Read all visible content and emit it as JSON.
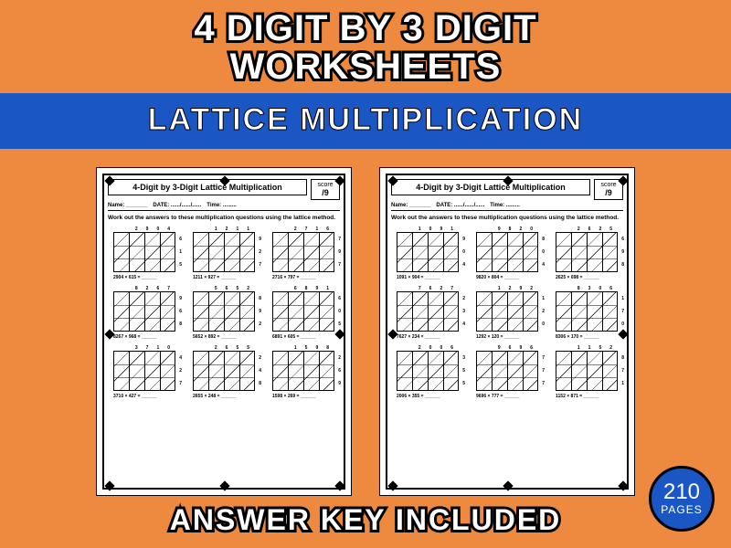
{
  "colors": {
    "background": "#ed8a3f",
    "banner": "#1a56c4",
    "badge": "#1a56c4",
    "text_outline": "#000000",
    "text_fill": "#ffffff"
  },
  "title": {
    "line1": "4 DIGIT BY 3 DIGIT",
    "line2": "WORKSHEETS",
    "fontsize": 40
  },
  "banner": {
    "text": "LATTICE MULTIPLICATION",
    "fontsize": 34
  },
  "footer": {
    "text": "ANSWER KEY INCLUDED",
    "fontsize": 32
  },
  "badge": {
    "number": "210",
    "label": "PAGES"
  },
  "worksheet": {
    "title": "4-Digit by 3-Digit Lattice Multiplication",
    "score_label": "score",
    "score_denom": "/9",
    "name_label": "Name:",
    "date_label": "DATE: ....../....../......",
    "time_label": "Time: .........",
    "instruction": "Work out the answers to these multiplication questions using the lattice method."
  },
  "sheet1": {
    "rows": [
      [
        {
          "top": [
            "2",
            "9",
            "0",
            "4"
          ],
          "side": [
            "6",
            "1",
            "5"
          ],
          "eq": "2904 × 615 = ______"
        },
        {
          "top": [
            "1",
            "2",
            "1",
            "1"
          ],
          "side": [
            "9",
            "2",
            "7"
          ],
          "eq": "1211 × 927 = ______"
        },
        {
          "top": [
            "2",
            "7",
            "1",
            "6"
          ],
          "side": [
            "7",
            "9",
            "7"
          ],
          "eq": "2716 × 797 = ______"
        }
      ],
      [
        {
          "top": [
            "8",
            "2",
            "6",
            "7"
          ],
          "side": [
            "9",
            "6",
            "8"
          ],
          "eq": "8267 × 968 = ______"
        },
        {
          "top": [
            "5",
            "6",
            "5",
            "2"
          ],
          "side": [
            "8",
            "9",
            "2"
          ],
          "eq": "5652 × 892 = ______"
        },
        {
          "top": [
            "6",
            "8",
            "9",
            "1"
          ],
          "side": [
            "6",
            "0",
            "5"
          ],
          "eq": "6891 × 605 = ______"
        }
      ],
      [
        {
          "top": [
            "3",
            "7",
            "1",
            "0"
          ],
          "side": [
            "4",
            "2",
            "7"
          ],
          "eq": "3710 × 427 = ______"
        },
        {
          "top": [
            "2",
            "6",
            "5",
            "5"
          ],
          "side": [
            "2",
            "4",
            "8"
          ],
          "eq": "2655 × 248 = ______"
        },
        {
          "top": [
            "1",
            "5",
            "9",
            "8"
          ],
          "side": [
            "2",
            "6",
            "9"
          ],
          "eq": "1598 × 269 = ______"
        }
      ]
    ]
  },
  "sheet2": {
    "rows": [
      [
        {
          "top": [
            "1",
            "0",
            "9",
            "1"
          ],
          "side": [
            "9",
            "0",
            "4"
          ],
          "eq": "1091 × 904 = ______"
        },
        {
          "top": [
            "9",
            "8",
            "2",
            "0"
          ],
          "side": [
            "8",
            "0",
            "4"
          ],
          "eq": "9820 × 804 = ______"
        },
        {
          "top": [
            "2",
            "6",
            "2",
            "5"
          ],
          "side": [
            "6",
            "9",
            "8"
          ],
          "eq": "2625 × 698 = ______"
        }
      ],
      [
        {
          "top": [
            "7",
            "6",
            "2",
            "7"
          ],
          "side": [
            "2",
            "3",
            "4"
          ],
          "eq": "7627 × 234 = ______"
        },
        {
          "top": [
            "1",
            "2",
            "9",
            "2"
          ],
          "side": [
            "1",
            "2",
            "0"
          ],
          "eq": "1292 × 120 = ______"
        },
        {
          "top": [
            "8",
            "3",
            "0",
            "6"
          ],
          "side": [
            "1",
            "7",
            "0"
          ],
          "eq": "8306 × 170 = ______"
        }
      ],
      [
        {
          "top": [
            "2",
            "0",
            "0",
            "6"
          ],
          "side": [
            "3",
            "5",
            "5"
          ],
          "eq": "2006 × 355 = ______"
        },
        {
          "top": [
            "9",
            "6",
            "9",
            "6"
          ],
          "side": [
            "7",
            "7",
            "7"
          ],
          "eq": "9696 × 777 = ______"
        },
        {
          "top": [
            "1",
            "1",
            "5",
            "2"
          ],
          "side": [
            "8",
            "7",
            "1"
          ],
          "eq": "1152 × 871 = ______"
        }
      ]
    ]
  }
}
